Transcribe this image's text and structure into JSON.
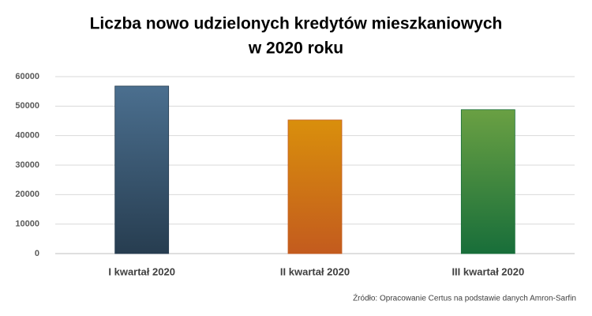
{
  "chart_data": {
    "type": "bar",
    "title": [
      "Liczba nowo udzielonych kredytów mieszkaniowych",
      "w 2020 roku"
    ],
    "categories": [
      "I kwartał 2020",
      "II kwartał 2020",
      "III kwartał 2020"
    ],
    "values": [
      56800,
      45300,
      48800
    ],
    "colors": [
      [
        "#4b6f8f",
        "#273d50"
      ],
      [
        "#d98f0c",
        "#c35b1e"
      ],
      [
        "#6aa043",
        "#186e3a"
      ]
    ],
    "ylim": [
      0,
      60000
    ],
    "yticks": [
      0,
      10000,
      20000,
      30000,
      40000,
      50000,
      60000
    ],
    "grid": true,
    "source": "Źródło: Opracowanie Certus na podstawie danych Amron-Sarfin"
  }
}
